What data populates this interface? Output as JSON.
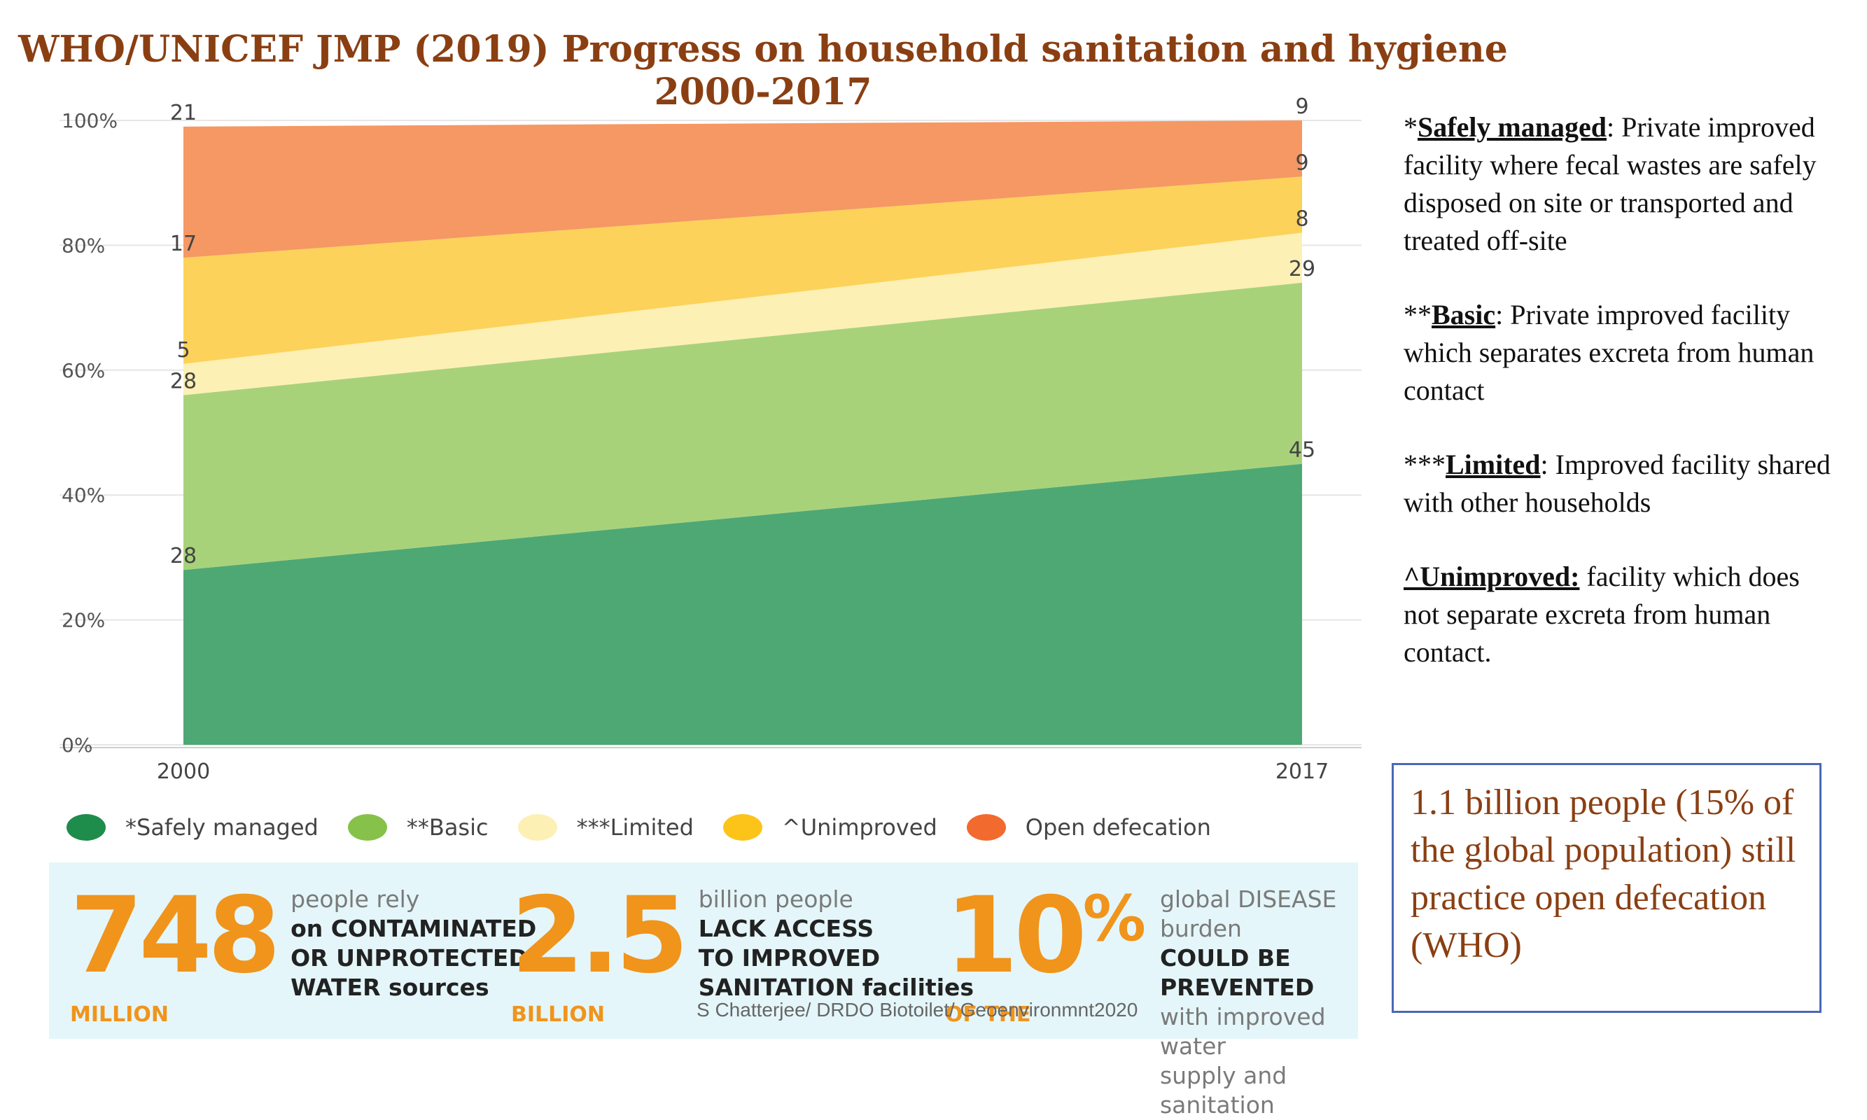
{
  "title": "WHO/UNICEF JMP (2019) Progress on household sanitation and hygiene 2000-2017",
  "chart_data": {
    "type": "area",
    "stacked": true,
    "x": [
      "2000",
      "2017"
    ],
    "ylim": [
      0,
      100
    ],
    "yticks": [
      "0%",
      "20%",
      "40%",
      "60%",
      "80%",
      "100%"
    ],
    "series": [
      {
        "name": "*Safely managed",
        "values": [
          28,
          45
        ],
        "labels": [
          "28",
          "45"
        ],
        "color": "#4ea874"
      },
      {
        "name": "**Basic",
        "values": [
          28,
          29
        ],
        "labels": [
          "28",
          "29"
        ],
        "color": "#a8d27a"
      },
      {
        "name": "***Limited",
        "values": [
          5,
          8
        ],
        "labels": [
          "5",
          "8"
        ],
        "color": "#fdf0b4"
      },
      {
        "name": "^Unimproved",
        "values": [
          17,
          9
        ],
        "labels": [
          "17",
          "9"
        ],
        "color": "#fdd25a"
      },
      {
        "name": "Open defecation",
        "values": [
          21,
          9
        ],
        "labels": [
          "21",
          "9"
        ],
        "color": "#f59863"
      }
    ],
    "legend": {
      "position": "bottom",
      "items": [
        {
          "label": "*Safely managed",
          "color": "#1e8c4a"
        },
        {
          "label": "**Basic",
          "color": "#86c24a"
        },
        {
          "label": "***Limited",
          "color": "#fdf0b4"
        },
        {
          "label": "^Unimproved",
          "color": "#fcc419"
        },
        {
          "label": "Open defecation",
          "color": "#f26a2e"
        }
      ]
    }
  },
  "definitions": [
    {
      "prefix": "*",
      "term": "Safely managed",
      "text": ": Private improved facility where fecal wastes are safely disposed on site or transported and treated off-site"
    },
    {
      "prefix": "**",
      "term": "Basic",
      "text": ": Private improved facility which separates excreta from human contact"
    },
    {
      "prefix": "***",
      "term": "Limited",
      "text": ": Improved facility shared with other households"
    },
    {
      "prefix": "",
      "term": "^Unimproved:",
      "text": " facility which does not separate excreta from human contact."
    }
  ],
  "note": "1.1 billion people (15% of the global population) still practice open defecation (WHO)",
  "stats": [
    {
      "number": "748",
      "unit": "MILLION",
      "lines": [
        "people rely",
        "on CONTAMINATED",
        "OR UNPROTECTED",
        "WATER sources"
      ]
    },
    {
      "number": "2.5",
      "unit": "BILLION",
      "lines": [
        "billion people",
        "LACK ACCESS",
        "TO IMPROVED",
        "SANITATION facilities"
      ]
    },
    {
      "number": "10",
      "pct": "%",
      "unit": "OF THE",
      "lines": [
        "global DISEASE burden",
        "COULD BE PREVENTED",
        "with improved water",
        "supply and sanitation"
      ]
    }
  ],
  "credit": "S Chatterjee/ DRDO Biotoilet/ Geoenvironmnt2020"
}
